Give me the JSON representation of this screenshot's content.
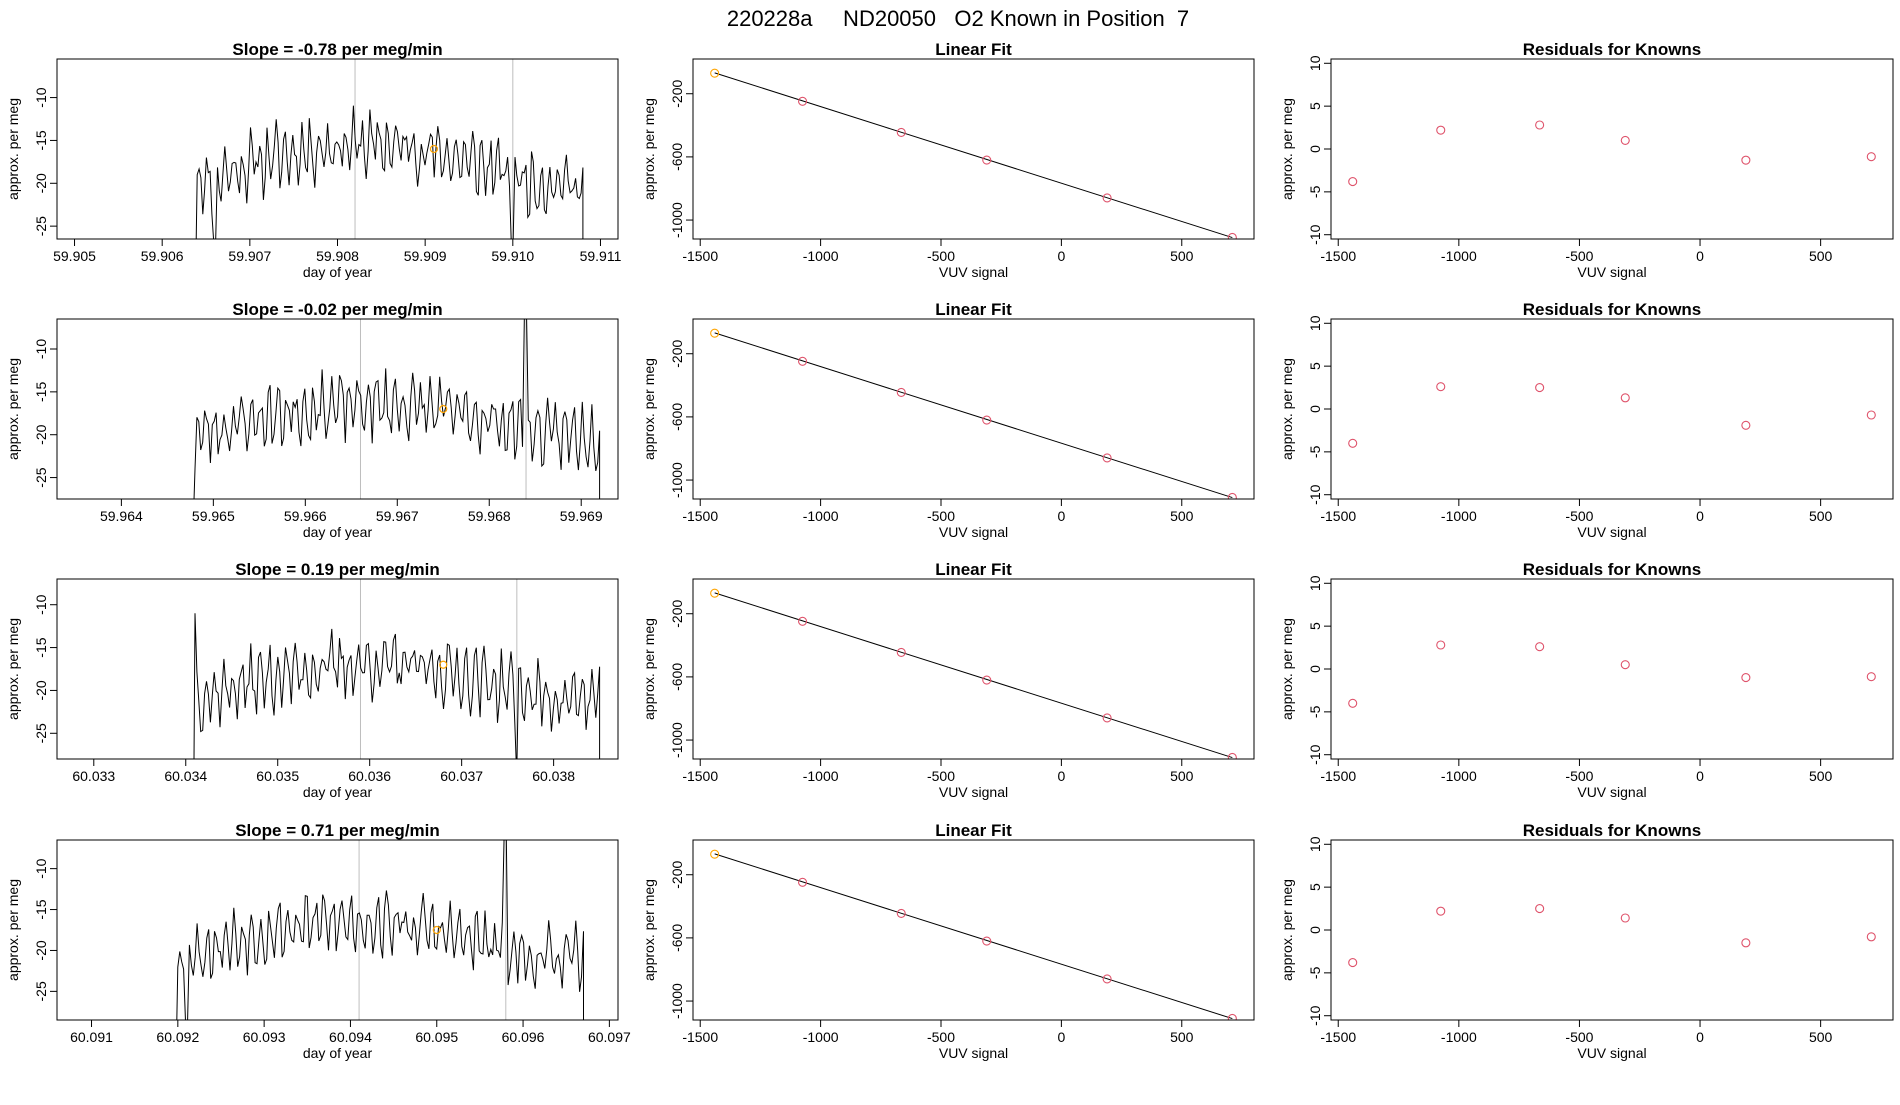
{
  "page_title": "220228a     ND20050   O2 Known in Position  7",
  "colors": {
    "trace": "#000000",
    "known_marker": "#ffa500",
    "fit_point": "#df536b",
    "fit_line": "#000000",
    "vline": "#bebebe",
    "frame": "#000000"
  },
  "chart_data": [
    {
      "type": "line",
      "row": 1,
      "panel": "time-series",
      "title": "Slope =  -0.78  per meg/min",
      "xlabel": "day of year",
      "ylabel": "approx. per meg",
      "xlim": [
        59.9048,
        59.9112
      ],
      "ylim": [
        -26.5,
        -5.5
      ],
      "xticks": [
        "59.905",
        "59.906",
        "59.907",
        "59.908",
        "59.909",
        "59.910",
        "59.911"
      ],
      "yticks": [
        "-25",
        "-20",
        "-15",
        "-10"
      ],
      "vlines": [
        59.9082,
        59.91
      ],
      "known_point": [
        59.9091,
        -16
      ],
      "trace_x_range": [
        59.9064,
        59.9108
      ],
      "seed": 11,
      "base": -20,
      "rise": 4.5,
      "spikes": [
        [
          59.9064,
          -19
        ],
        [
          59.91,
          -27
        ],
        [
          59.9066,
          -27
        ]
      ]
    },
    {
      "type": "line",
      "row": 1,
      "panel": "linear-fit",
      "title": "Linear Fit",
      "xlabel": "VUV signal",
      "ylabel": "approx. per meg",
      "xlim": [
        -1530,
        800
      ],
      "ylim": [
        -1120,
        20
      ],
      "xticks": [
        "-1500",
        "-1000",
        "-500",
        "0",
        "500"
      ],
      "yticks": [
        "-200",
        "-600",
        "-1000"
      ],
      "x": [
        -1440,
        -1075,
        -665,
        -310,
        190,
        710
      ],
      "y": [
        -70,
        -248,
        -445,
        -620,
        -860,
        -1110
      ],
      "fit_line": [
        [
          -1440,
          -68
        ],
        [
          710,
          -1111
        ]
      ]
    },
    {
      "type": "scatter",
      "row": 1,
      "panel": "residuals",
      "title": "Residuals for Knowns",
      "xlabel": "VUV signal",
      "ylabel": "approx. per meg",
      "xlim": [
        -1530,
        800
      ],
      "ylim": [
        -10.5,
        10.5
      ],
      "xticks": [
        "-1500",
        "-1000",
        "-500",
        "0",
        "500"
      ],
      "yticks": [
        "-10",
        "-5",
        "0",
        "5",
        "10"
      ],
      "x": [
        -1440,
        -1075,
        -665,
        -310,
        190,
        710
      ],
      "y": [
        -3.8,
        2.2,
        2.8,
        1.0,
        -1.3,
        -0.9
      ]
    },
    {
      "type": "line",
      "row": 2,
      "panel": "time-series",
      "title": "Slope =  -0.02  per meg/min",
      "xlabel": "day of year",
      "ylabel": "approx. per meg",
      "xlim": [
        59.9633,
        59.9694
      ],
      "ylim": [
        -27.5,
        -6.5
      ],
      "xticks": [
        "59.964",
        "59.965",
        "59.966",
        "59.967",
        "59.968",
        "59.969"
      ],
      "yticks": [
        "-25",
        "-20",
        "-15",
        "-10"
      ],
      "vlines": [
        59.9666,
        59.9684
      ],
      "known_point": [
        59.9675,
        -17
      ],
      "trace_x_range": [
        59.9648,
        59.9692
      ],
      "seed": 23,
      "base": -20,
      "rise": 3.5,
      "spikes": [
        [
          59.9684,
          -5
        ],
        [
          59.9648,
          -24
        ]
      ]
    },
    {
      "type": "line",
      "row": 2,
      "panel": "linear-fit",
      "title": "Linear Fit",
      "xlabel": "VUV signal",
      "ylabel": "approx. per meg",
      "xlim": [
        -1530,
        800
      ],
      "ylim": [
        -1120,
        20
      ],
      "xticks": [
        "-1500",
        "-1000",
        "-500",
        "0",
        "500"
      ],
      "yticks": [
        "-200",
        "-600",
        "-1000"
      ],
      "x": [
        -1440,
        -1075,
        -665,
        -310,
        190,
        710
      ],
      "y": [
        -70,
        -248,
        -445,
        -620,
        -860,
        -1110
      ],
      "fit_line": [
        [
          -1440,
          -68
        ],
        [
          710,
          -1111
        ]
      ]
    },
    {
      "type": "scatter",
      "row": 2,
      "panel": "residuals",
      "title": "Residuals for Knowns",
      "xlabel": "VUV signal",
      "ylabel": "approx. per meg",
      "xlim": [
        -1530,
        800
      ],
      "ylim": [
        -10.5,
        10.5
      ],
      "xticks": [
        "-1500",
        "-1000",
        "-500",
        "0",
        "500"
      ],
      "yticks": [
        "-10",
        "-5",
        "0",
        "5",
        "10"
      ],
      "x": [
        -1440,
        -1075,
        -665,
        -310,
        190,
        710
      ],
      "y": [
        -4.0,
        2.6,
        2.5,
        1.3,
        -1.9,
        -0.7
      ]
    },
    {
      "type": "line",
      "row": 3,
      "panel": "time-series",
      "title": "Slope =  0.19  per meg/min",
      "xlabel": "day of year",
      "ylabel": "approx. per meg",
      "xlim": [
        60.0326,
        60.0387
      ],
      "ylim": [
        -28,
        -7
      ],
      "xticks": [
        "60.033",
        "60.034",
        "60.035",
        "60.036",
        "60.037",
        "60.038"
      ],
      "yticks": [
        "-25",
        "-20",
        "-15",
        "-10"
      ],
      "vlines": [
        60.0359,
        60.0376
      ],
      "known_point": [
        60.0368,
        -17
      ],
      "trace_x_range": [
        60.0341,
        60.0385
      ],
      "seed": 37,
      "base": -21,
      "rise": 4,
      "spikes": [
        [
          60.0341,
          -11
        ],
        [
          60.0376,
          -30
        ]
      ]
    },
    {
      "type": "line",
      "row": 3,
      "panel": "linear-fit",
      "title": "Linear Fit",
      "xlabel": "VUV signal",
      "ylabel": "approx. per meg",
      "xlim": [
        -1530,
        800
      ],
      "ylim": [
        -1120,
        20
      ],
      "xticks": [
        "-1500",
        "-1000",
        "-500",
        "0",
        "500"
      ],
      "yticks": [
        "-200",
        "-600",
        "-1000"
      ],
      "x": [
        -1440,
        -1075,
        -665,
        -310,
        190,
        710
      ],
      "y": [
        -70,
        -248,
        -445,
        -620,
        -860,
        -1110
      ],
      "fit_line": [
        [
          -1440,
          -68
        ],
        [
          710,
          -1111
        ]
      ]
    },
    {
      "type": "scatter",
      "row": 3,
      "panel": "residuals",
      "title": "Residuals for Knowns",
      "xlabel": "VUV signal",
      "ylabel": "approx. per meg",
      "xlim": [
        -1530,
        800
      ],
      "ylim": [
        -10.5,
        10.5
      ],
      "xticks": [
        "-1500",
        "-1000",
        "-500",
        "0",
        "500"
      ],
      "yticks": [
        "-10",
        "-5",
        "0",
        "5",
        "10"
      ],
      "x": [
        -1440,
        -1075,
        -665,
        -310,
        190,
        710
      ],
      "y": [
        -4.0,
        2.8,
        2.6,
        0.5,
        -1.0,
        -0.9
      ]
    },
    {
      "type": "line",
      "row": 4,
      "panel": "time-series",
      "title": "Slope =  0.71  per meg/min",
      "xlabel": "day of year",
      "ylabel": "approx. per meg",
      "xlim": [
        60.0906,
        60.0971
      ],
      "ylim": [
        -28.5,
        -6.5
      ],
      "xticks": [
        "60.091",
        "60.092",
        "60.093",
        "60.094",
        "60.095",
        "60.096",
        "60.097"
      ],
      "yticks": [
        "-25",
        "-20",
        "-15",
        "-10"
      ],
      "vlines": [
        60.0941,
        60.0958
      ],
      "known_point": [
        60.095,
        -17.5
      ],
      "trace_x_range": [
        60.092,
        60.0967
      ],
      "seed": 53,
      "base": -21,
      "rise": 4.5,
      "spikes": [
        [
          60.0958,
          -5
        ],
        [
          60.0921,
          -29
        ]
      ]
    },
    {
      "type": "line",
      "row": 4,
      "panel": "linear-fit",
      "title": "Linear Fit",
      "xlabel": "VUV signal",
      "ylabel": "approx. per meg",
      "xlim": [
        -1530,
        800
      ],
      "ylim": [
        -1120,
        20
      ],
      "xticks": [
        "-1500",
        "-1000",
        "-500",
        "0",
        "500"
      ],
      "yticks": [
        "-200",
        "-600",
        "-1000"
      ],
      "x": [
        -1440,
        -1075,
        -665,
        -310,
        190,
        710
      ],
      "y": [
        -70,
        -248,
        -445,
        -620,
        -860,
        -1110
      ],
      "fit_line": [
        [
          -1440,
          -68
        ],
        [
          710,
          -1111
        ]
      ]
    },
    {
      "type": "scatter",
      "row": 4,
      "panel": "residuals",
      "title": "Residuals for Knowns",
      "xlabel": "VUV signal",
      "ylabel": "approx. per meg",
      "xlim": [
        -1530,
        800
      ],
      "ylim": [
        -10.5,
        10.5
      ],
      "xticks": [
        "-1500",
        "-1000",
        "-500",
        "0",
        "500"
      ],
      "yticks": [
        "-10",
        "-5",
        "0",
        "5",
        "10"
      ],
      "x": [
        -1440,
        -1075,
        -665,
        -310,
        190,
        710
      ],
      "y": [
        -3.8,
        2.2,
        2.5,
        1.4,
        -1.5,
        -0.8
      ]
    }
  ]
}
